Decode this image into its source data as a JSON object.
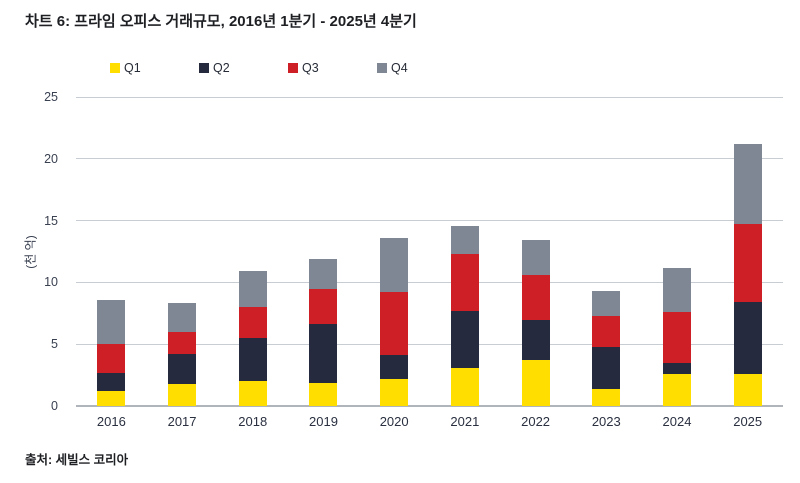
{
  "title": "차트 6: 프라임 오피스 거래규모, 2016년 1분기 - 2025년 4분기",
  "source": "출처: 세빌스 코리아",
  "chart_data": {
    "type": "bar",
    "stacked": true,
    "title": "차트 6: 프라임 오피스 거래규모, 2016년 1분기 - 2025년 4분기",
    "xlabel": "",
    "ylabel": "(천 억)",
    "ylim": [
      0,
      25
    ],
    "yticks": [
      0,
      5,
      10,
      15,
      20,
      25
    ],
    "grid": true,
    "legend_position": "top",
    "categories": [
      "2016",
      "2017",
      "2018",
      "2019",
      "2020",
      "2021",
      "2022",
      "2023",
      "2024",
      "2025"
    ],
    "series": [
      {
        "name": "Q1",
        "color": "#FFDE00",
        "values": [
          1.2,
          1.8,
          2.0,
          1.9,
          2.2,
          3.1,
          3.7,
          1.4,
          2.6,
          2.6
        ]
      },
      {
        "name": "Q2",
        "color": "#252A3E",
        "values": [
          1.5,
          2.4,
          3.5,
          4.7,
          1.9,
          4.6,
          3.3,
          3.4,
          0.9,
          5.8
        ]
      },
      {
        "name": "Q3",
        "color": "#CE1F26",
        "values": [
          2.3,
          1.8,
          2.5,
          2.9,
          5.1,
          4.6,
          3.6,
          2.5,
          4.1,
          6.3
        ]
      },
      {
        "name": "Q4",
        "color": "#7F8694",
        "values": [
          3.6,
          2.3,
          2.9,
          2.4,
          4.4,
          2.3,
          2.8,
          2.0,
          3.6,
          6.5
        ]
      }
    ],
    "totals": [
      8.6,
      8.3,
      10.9,
      11.9,
      13.6,
      14.6,
      13.4,
      9.3,
      11.2,
      21.2
    ]
  }
}
